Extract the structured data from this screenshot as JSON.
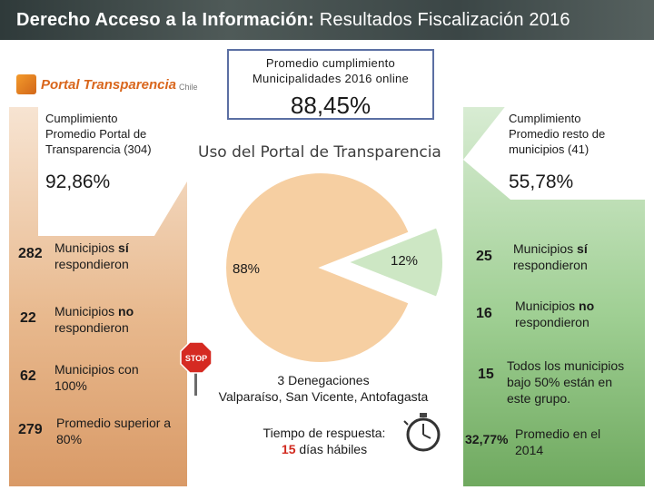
{
  "header": {
    "title_bold": "Derecho Acceso a la Información:",
    "title_rest": " Resultados Fiscalización 2016"
  },
  "logo": {
    "name": "Portal Transparencia",
    "country": "Chile"
  },
  "summary": {
    "label_line1": "Promedio cumplimiento",
    "label_line2": "Municipalidades 2016 online",
    "value": "88,45%"
  },
  "pie": {
    "title": "Uso del Portal de Transparencia",
    "chart_data": {
      "type": "pie",
      "labels": [
        "88%",
        "12%"
      ],
      "values": [
        88,
        12
      ],
      "colors": [
        "#f6cfa2",
        "#cde7c4"
      ]
    }
  },
  "left": {
    "card_line1": "Cumplimiento",
    "card_line2": "Promedio Portal de",
    "card_line3": "Transparencia (304)",
    "value": "92,86%",
    "rows": [
      {
        "num": "282",
        "line1a": "Municipios ",
        "line1b": "sí",
        "line2": "respondieron"
      },
      {
        "num": "22",
        "line1a": "Municipios ",
        "line1b": "no",
        "line2": "respondieron"
      },
      {
        "num": "62",
        "line1a": "Municipios con",
        "line1b": "",
        "line2": "100%"
      },
      {
        "num": "279",
        "line1a": "Promedio superior a",
        "line1b": "",
        "line2": "80%"
      }
    ]
  },
  "right": {
    "card_line1": "Cumplimiento",
    "card_line2": "Promedio resto de",
    "card_line3": "municipios (41)",
    "value": "55,78%",
    "rows": [
      {
        "num": "25",
        "line1a": "Municipios ",
        "line1b": "sí",
        "line2": "respondieron"
      },
      {
        "num": "16",
        "line1a": "Municipios ",
        "line1b": "no",
        "line2": "respondieron"
      },
      {
        "num": "15",
        "line1": "Todos los municipios",
        "line2": "bajo 50% están en",
        "line3": "este grupo."
      }
    ],
    "avg_value": "32,77%",
    "avg_line1": "Promedio en el",
    "avg_line2": "2014"
  },
  "denegaciones": {
    "line1": "3 Denegaciones",
    "line2": "Valparaíso, San Vicente, Antofagasta"
  },
  "tiempo": {
    "line1": "Tiempo de respuesta:",
    "days": "15",
    "rest": " días hábiles"
  },
  "stop_sign": {
    "text": "STOP"
  },
  "icons": {
    "stop": "stop-sign-icon",
    "clock": "stopwatch-icon"
  }
}
